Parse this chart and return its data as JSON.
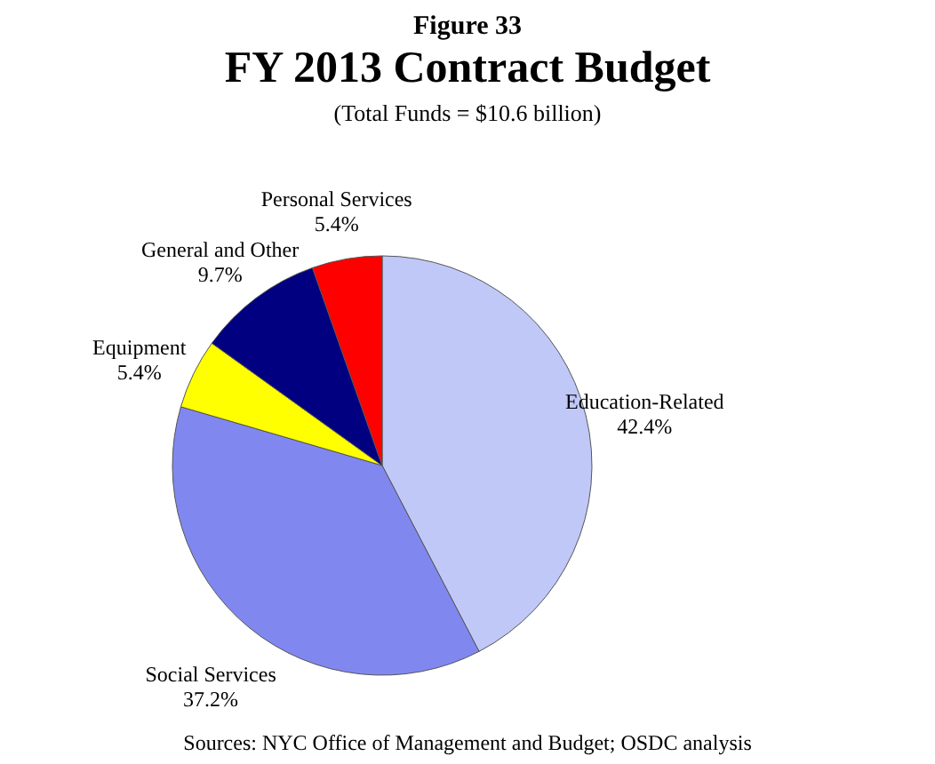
{
  "chart_data": {
    "type": "pie",
    "title": "FY 2013 Contract Budget",
    "subtitle": "(Total Funds = $10.6 billion)",
    "categories": [
      "Education-Related",
      "Social Services",
      "Equipment",
      "General and Other",
      "Personal Services"
    ],
    "values": [
      42.4,
      37.2,
      5.4,
      9.7,
      5.4
    ],
    "colors": [
      "#c0c8f8",
      "#8088f0",
      "#ffff00",
      "#000080",
      "#ff0000"
    ],
    "value_labels": [
      "42.4%",
      "37.2%",
      "5.4%",
      "9.7%",
      "5.4%"
    ],
    "annotations": [
      "Figure 33",
      "Sources: NYC Office of Management and Budget; OSDC analysis"
    ]
  }
}
